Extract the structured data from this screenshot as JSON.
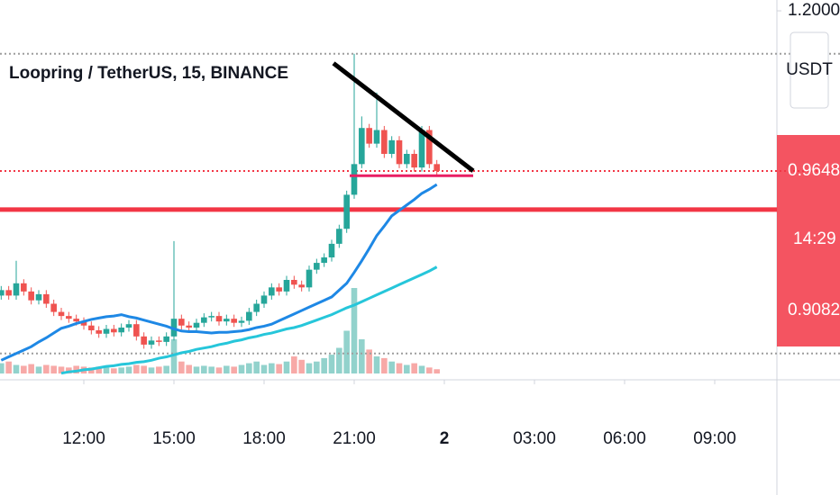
{
  "chart_data": {
    "type": "candlestick",
    "title": "Loopring / TetherUS, 15, BINANCE",
    "currency": "USDT",
    "countdown": "14:29",
    "x": [
      9.25,
      9.5,
      9.75,
      10,
      10.25,
      10.5,
      10.75,
      11,
      11.25,
      11.5,
      11.75,
      12,
      12.25,
      12.5,
      12.75,
      13,
      13.25,
      13.5,
      13.75,
      14,
      14.25,
      14.5,
      14.75,
      15,
      15.25,
      15.5,
      15.75,
      16,
      16.25,
      16.5,
      16.75,
      17,
      17.25,
      17.5,
      17.75,
      18,
      18.25,
      18.5,
      18.75,
      19,
      19.25,
      19.5,
      19.75,
      20,
      20.25,
      20.5,
      20.75,
      21,
      21.25,
      21.5,
      21.75,
      22,
      22.25,
      22.5,
      22.75,
      23,
      23.25,
      23.5,
      23.75
    ],
    "open": [
      0.782,
      0.79,
      0.782,
      0.8,
      0.788,
      0.775,
      0.784,
      0.77,
      0.758,
      0.752,
      0.748,
      0.744,
      0.738,
      0.731,
      0.726,
      0.733,
      0.728,
      0.735,
      0.74,
      0.722,
      0.71,
      0.716,
      0.714,
      0.722,
      0.748,
      0.738,
      0.735,
      0.742,
      0.75,
      0.752,
      0.744,
      0.748,
      0.742,
      0.745,
      0.758,
      0.77,
      0.782,
      0.794,
      0.788,
      0.805,
      0.798,
      0.794,
      0.82,
      0.83,
      0.838,
      0.858,
      0.88,
      0.93,
      0.975,
      1.028,
      1.005,
      1.025,
      0.99,
      1.01,
      0.975,
      0.99,
      0.97,
      1.025,
      0.975
    ],
    "high": [
      0.796,
      0.796,
      0.833,
      0.806,
      0.794,
      0.79,
      0.79,
      0.776,
      0.764,
      0.758,
      0.754,
      0.75,
      0.744,
      0.737,
      0.739,
      0.739,
      0.741,
      0.746,
      0.746,
      0.728,
      0.722,
      0.722,
      0.728,
      0.862,
      0.754,
      0.744,
      0.748,
      0.756,
      0.758,
      0.758,
      0.754,
      0.754,
      0.751,
      0.764,
      0.776,
      0.788,
      0.8,
      0.8,
      0.811,
      0.811,
      0.804,
      0.826,
      0.836,
      0.844,
      0.864,
      0.886,
      0.936,
      1.137,
      1.045,
      1.034,
      1.08,
      1.031,
      1.016,
      1.016,
      0.996,
      0.996,
      1.031,
      1.031,
      0.981
    ],
    "low": [
      0.776,
      0.776,
      0.776,
      0.782,
      0.769,
      0.769,
      0.764,
      0.752,
      0.746,
      0.742,
      0.738,
      0.732,
      0.725,
      0.72,
      0.72,
      0.722,
      0.722,
      0.729,
      0.716,
      0.704,
      0.704,
      0.708,
      0.708,
      0.716,
      0.732,
      0.729,
      0.729,
      0.736,
      0.744,
      0.738,
      0.738,
      0.736,
      0.736,
      0.739,
      0.752,
      0.764,
      0.776,
      0.782,
      0.782,
      0.792,
      0.788,
      0.788,
      0.814,
      0.824,
      0.832,
      0.852,
      0.874,
      0.924,
      0.969,
      0.999,
      0.999,
      0.984,
      0.984,
      0.969,
      0.969,
      0.964,
      0.964,
      0.969,
      0.9588
    ],
    "close": [
      0.79,
      0.782,
      0.8,
      0.788,
      0.775,
      0.784,
      0.77,
      0.758,
      0.752,
      0.748,
      0.744,
      0.738,
      0.731,
      0.726,
      0.733,
      0.728,
      0.735,
      0.74,
      0.722,
      0.71,
      0.716,
      0.714,
      0.722,
      0.748,
      0.738,
      0.735,
      0.742,
      0.75,
      0.752,
      0.744,
      0.748,
      0.742,
      0.745,
      0.758,
      0.77,
      0.782,
      0.794,
      0.788,
      0.805,
      0.798,
      0.794,
      0.82,
      0.83,
      0.838,
      0.858,
      0.88,
      0.93,
      0.975,
      1.028,
      1.005,
      1.025,
      0.99,
      1.01,
      0.975,
      0.99,
      0.97,
      1.025,
      0.975,
      0.9648
    ],
    "up_color": "#26a69a",
    "down_color": "#ef5350",
    "volume": {
      "values": [
        12,
        14,
        10,
        9,
        11,
        8,
        10,
        9,
        8,
        7,
        9,
        8,
        7,
        8,
        7,
        6,
        7,
        8,
        10,
        9,
        7,
        8,
        9,
        40,
        14,
        10,
        8,
        9,
        8,
        7,
        9,
        8,
        10,
        12,
        14,
        10,
        12,
        11,
        14,
        20,
        16,
        12,
        14,
        18,
        22,
        30,
        50,
        100,
        40,
        28,
        20,
        18,
        14,
        12,
        10,
        12,
        9,
        7,
        5
      ],
      "max": 100
    },
    "series": [
      {
        "color": "#1e88e5",
        "values": [
          0.687,
          0.692,
          0.697,
          0.702,
          0.707,
          0.714,
          0.72,
          0.727,
          0.734,
          0.737,
          0.741,
          0.744,
          0.747,
          0.749,
          0.751,
          0.752,
          0.754,
          0.751,
          0.749,
          0.746,
          0.743,
          0.74,
          0.737,
          0.733,
          0.73,
          0.729,
          0.729,
          0.728,
          0.727,
          0.728,
          0.728,
          0.729,
          0.73,
          0.732,
          0.735,
          0.737,
          0.74,
          0.745,
          0.75,
          0.755,
          0.76,
          0.765,
          0.77,
          0.775,
          0.78,
          0.79,
          0.8,
          0.816,
          0.833,
          0.851,
          0.87,
          0.884,
          0.899,
          0.907,
          0.915,
          0.923,
          0.932,
          0.938,
          0.945
        ]
      },
      {
        "color": "#26c6da",
        "values": [
          null,
          null,
          null,
          null,
          null,
          null,
          null,
          null,
          0.668,
          0.67,
          0.671,
          0.673,
          0.674,
          0.676,
          0.678,
          0.679,
          0.681,
          0.682,
          0.684,
          0.685,
          0.687,
          0.69,
          0.692,
          0.695,
          0.698,
          0.7,
          0.703,
          0.705,
          0.707,
          0.71,
          0.712,
          0.715,
          0.717,
          0.72,
          0.722,
          0.725,
          0.727,
          0.73,
          0.733,
          0.735,
          0.738,
          0.742,
          0.746,
          0.75,
          0.754,
          0.759,
          0.764,
          0.768,
          0.773,
          0.778,
          0.783,
          0.788,
          0.793,
          0.798,
          0.803,
          0.808,
          0.813,
          0.818,
          0.824
        ]
      }
    ],
    "hlines": [
      {
        "value": 0.9082,
        "color": "#f23645",
        "style": "solid"
      },
      {
        "value": 0.9648,
        "color": "#f23645",
        "style": "dotted"
      },
      {
        "value": 1.137,
        "color": "#9e9e9e",
        "style": "dotted"
      },
      {
        "value": 0.697,
        "color": "#9e9e9e",
        "style": "dotted"
      }
    ],
    "trendlines": [
      {
        "x": [
          20.31,
          24.96
        ],
        "y": [
          1.123,
          0.965
        ],
        "color": "#000000"
      },
      {
        "x": [
          20.85,
          24.96
        ],
        "y": [
          0.958,
          0.958
        ],
        "color": "#e91e63"
      }
    ],
    "price_labels": [
      {
        "value": 0.9648,
        "label": "0.9648"
      },
      {
        "value": 0.9082,
        "label": "0.9082"
      }
    ],
    "xlim": [
      9.21,
      35.07
    ],
    "ylim": [
      0.6676,
      1.2159
    ],
    "xticks": [
      {
        "value": 12,
        "label": "12:00"
      },
      {
        "value": 15,
        "label": "15:00"
      },
      {
        "value": 18,
        "label": "18:00"
      },
      {
        "value": 21,
        "label": "21:00"
      },
      {
        "value": 24,
        "label": "2"
      },
      {
        "value": 27,
        "label": "03:00"
      },
      {
        "value": 30,
        "label": "06:00"
      },
      {
        "value": 33,
        "label": "09:00"
      }
    ],
    "yticks": [
      {
        "value": 1.2,
        "label": "1.2000"
      }
    ]
  }
}
